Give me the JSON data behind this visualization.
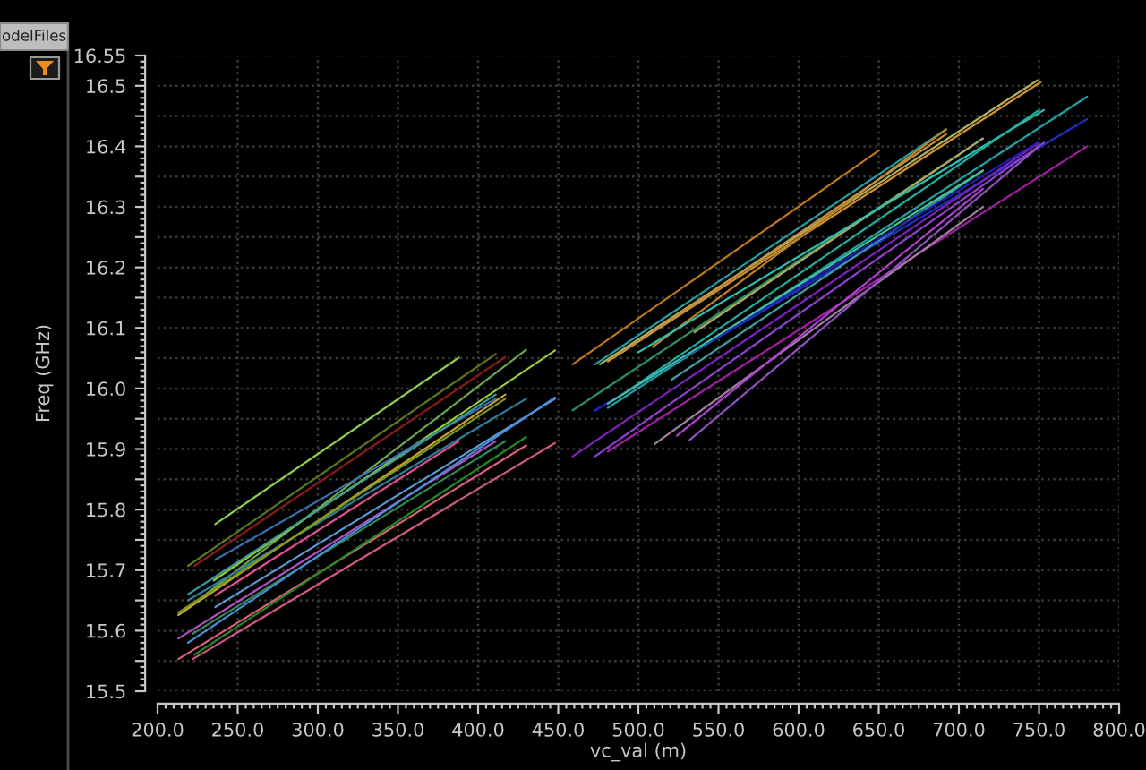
{
  "chart_data": {
    "type": "line",
    "xlabel": "vc_val (m)",
    "ylabel": "Freq (GHz)",
    "annotations": [
      "odelFiles"
    ],
    "xlim": [
      200,
      800
    ],
    "ylim": [
      15.5,
      16.55
    ],
    "xticks": [
      {
        "value": 200,
        "label": "200.0"
      },
      {
        "value": 250,
        "label": "250.0"
      },
      {
        "value": 300,
        "label": "300.0"
      },
      {
        "value": 350,
        "label": "350.0"
      },
      {
        "value": 400,
        "label": "400.0"
      },
      {
        "value": 450,
        "label": "450.0"
      },
      {
        "value": 500,
        "label": "500.0"
      },
      {
        "value": 550,
        "label": "550.0"
      },
      {
        "value": 600,
        "label": "600.0"
      },
      {
        "value": 650,
        "label": "650.0"
      },
      {
        "value": 700,
        "label": "700.0"
      },
      {
        "value": 750,
        "label": "750.0"
      },
      {
        "value": 800,
        "label": "800.0"
      }
    ],
    "yticks": [
      15.5,
      {
        "value": 15.55,
        "label": null
      },
      15.6,
      {
        "value": 15.65,
        "label": null
      },
      15.7,
      {
        "value": 15.75,
        "label": null
      },
      15.8,
      {
        "value": 15.85,
        "label": null
      },
      15.9,
      {
        "value": 15.95,
        "label": null
      },
      {
        "value": 16,
        "label": "16.0"
      },
      {
        "value": 16.05,
        "label": null
      },
      16.1,
      {
        "value": 16.15,
        "label": null
      },
      16.2,
      {
        "value": 16.25,
        "label": null
      },
      16.3,
      {
        "value": 16.35,
        "label": null
      },
      16.4,
      {
        "value": 16.45,
        "label": null
      },
      16.5,
      16.55
    ],
    "grid": true,
    "line_style": "solid",
    "series": [
      {
        "color": "#8fd14f",
        "x": [
          236,
          388
        ],
        "values": [
          15.776,
          16.051
        ]
      },
      {
        "color": "#5a7a1a",
        "x": [
          219,
          411
        ],
        "values": [
          15.707,
          16.057
        ]
      },
      {
        "color": "#8b1a1a",
        "x": [
          223,
          417
        ],
        "values": [
          15.707,
          16.052
        ]
      },
      {
        "color": "#6aa84f",
        "x": [
          213,
          430
        ],
        "values": [
          15.626,
          16.064
        ]
      },
      {
        "color": "#9acd32",
        "x": [
          235,
          448
        ],
        "values": [
          15.683,
          16.063
        ]
      },
      {
        "color": "#3a6fb0",
        "x": [
          236,
          411
        ],
        "values": [
          15.717,
          15.983
        ]
      },
      {
        "color": "#2e7d9a",
        "x": [
          219,
          430
        ],
        "values": [
          15.65,
          15.983
        ]
      },
      {
        "color": "#c8a030",
        "x": [
          213,
          417
        ],
        "values": [
          15.626,
          15.99
        ]
      },
      {
        "color": "#7a9a20",
        "x": [
          213,
          417
        ],
        "values": [
          15.63,
          15.983
        ]
      },
      {
        "color": "#5b9bd5",
        "x": [
          236,
          448
        ],
        "values": [
          15.639,
          15.983
        ]
      },
      {
        "color": "#e05090",
        "x": [
          236,
          388
        ],
        "values": [
          15.658,
          15.913
        ]
      },
      {
        "color": "#b050c0",
        "x": [
          213,
          411
        ],
        "values": [
          15.587,
          15.913
        ]
      },
      {
        "color": "#2e8b57",
        "x": [
          222,
          417
        ],
        "values": [
          15.595,
          15.913
        ]
      },
      {
        "color": "#e0607a",
        "x": [
          213,
          430
        ],
        "values": [
          15.553,
          15.906
        ]
      },
      {
        "color": "#d05880",
        "x": [
          222,
          448
        ],
        "values": [
          15.553,
          15.91
        ]
      },
      {
        "color": "#4a90d9",
        "x": [
          219,
          448
        ],
        "values": [
          15.58,
          15.985
        ]
      },
      {
        "color": "#3c9a9a",
        "x": [
          219,
          411
        ],
        "values": [
          15.66,
          15.99
        ]
      },
      {
        "color": "#228b22",
        "x": [
          223,
          430
        ],
        "values": [
          15.56,
          15.92
        ]
      },
      {
        "color": "#c07818",
        "x": [
          459,
          650
        ],
        "values": [
          16.04,
          16.393
        ]
      },
      {
        "color": "#20a0a0",
        "x": [
          473,
          692
        ],
        "values": [
          16.04,
          16.428
        ]
      },
      {
        "color": "#d09030",
        "x": [
          481,
          751
        ],
        "values": [
          16.045,
          16.506
        ]
      },
      {
        "color": "#b0b060",
        "x": [
          476,
          749
        ],
        "values": [
          16.04,
          16.509
        ]
      },
      {
        "color": "#2a9060",
        "x": [
          459,
          715
        ],
        "values": [
          15.964,
          16.413
        ]
      },
      {
        "color": "#2030c0",
        "x": [
          473,
          780
        ],
        "values": [
          15.964,
          16.445
        ]
      },
      {
        "color": "#20a0a0",
        "x": [
          481,
          780
        ],
        "values": [
          15.968,
          16.482
        ]
      },
      {
        "color": "#8020c0",
        "x": [
          459,
          750
        ],
        "values": [
          15.888,
          16.406
        ]
      },
      {
        "color": "#9040d0",
        "x": [
          473,
          753
        ],
        "values": [
          15.888,
          16.406
        ]
      },
      {
        "color": "#a020a0",
        "x": [
          481,
          780
        ],
        "values": [
          15.896,
          16.4
        ]
      },
      {
        "color": "#a080a0",
        "x": [
          510,
          715
        ],
        "values": [
          15.908,
          16.3
        ]
      },
      {
        "color": "#b040d0",
        "x": [
          524,
          715
        ],
        "values": [
          15.922,
          16.33
        ]
      },
      {
        "color": "#40a0a0",
        "x": [
          521,
          715
        ],
        "values": [
          16.015,
          16.36
        ]
      },
      {
        "color": "#b0a860",
        "x": [
          535,
          715
        ],
        "values": [
          16.093,
          16.413
        ]
      },
      {
        "color": "#c08020",
        "x": [
          509,
          692
        ],
        "values": [
          16.069,
          16.428
        ]
      },
      {
        "color": "#30c0b0",
        "x": [
          500,
          753
        ],
        "values": [
          16.06,
          16.46
        ]
      },
      {
        "color": "#20b0a0",
        "x": [
          490,
          750
        ],
        "values": [
          15.99,
          16.46
        ]
      },
      {
        "color": "#2020b0",
        "x": [
          473,
          749
        ],
        "values": [
          15.963,
          16.406
        ]
      },
      {
        "color": "#40c0a0",
        "x": [
          481,
          715
        ],
        "values": [
          15.975,
          16.36
        ]
      },
      {
        "color": "#9050c0",
        "x": [
          532,
          750
        ],
        "values": [
          15.915,
          16.4
        ]
      },
      {
        "color": "#c09040",
        "x": [
          490,
          692
        ],
        "values": [
          16.06,
          16.42
        ]
      }
    ]
  }
}
